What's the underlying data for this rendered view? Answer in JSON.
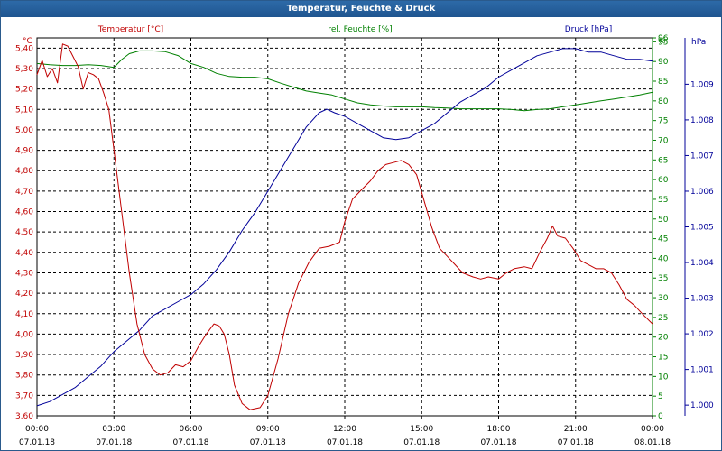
{
  "window": {
    "title": "Temperatur, Feuchte & Druck"
  },
  "colors": {
    "temperature": "#c00000",
    "humidity": "#008000",
    "pressure": "#000099",
    "grid": "#000000",
    "titlebar": "#1f5590"
  },
  "chart_data": {
    "type": "line",
    "grid": true,
    "series": [
      {
        "name": "Temperatur [°C]",
        "unit_label": "°C",
        "axis": "left",
        "ylim": [
          3.6,
          5.45
        ],
        "points": [
          [
            0,
            5.27
          ],
          [
            0.2,
            5.34
          ],
          [
            0.4,
            5.26
          ],
          [
            0.6,
            5.3
          ],
          [
            0.8,
            5.23
          ],
          [
            1.0,
            5.42
          ],
          [
            1.2,
            5.41
          ],
          [
            1.4,
            5.36
          ],
          [
            1.6,
            5.31
          ],
          [
            1.8,
            5.2
          ],
          [
            2.0,
            5.28
          ],
          [
            2.2,
            5.27
          ],
          [
            2.4,
            5.25
          ],
          [
            2.6,
            5.18
          ],
          [
            2.8,
            5.1
          ],
          [
            3.0,
            4.9
          ],
          [
            3.3,
            4.6
          ],
          [
            3.6,
            4.3
          ],
          [
            3.9,
            4.05
          ],
          [
            4.2,
            3.9
          ],
          [
            4.5,
            3.83
          ],
          [
            4.8,
            3.8
          ],
          [
            5.1,
            3.81
          ],
          [
            5.4,
            3.85
          ],
          [
            5.7,
            3.84
          ],
          [
            6.0,
            3.87
          ],
          [
            6.3,
            3.94
          ],
          [
            6.6,
            4.0
          ],
          [
            6.9,
            4.05
          ],
          [
            7.1,
            4.04
          ],
          [
            7.3,
            4.0
          ],
          [
            7.5,
            3.9
          ],
          [
            7.7,
            3.75
          ],
          [
            8.0,
            3.66
          ],
          [
            8.3,
            3.63
          ],
          [
            8.7,
            3.64
          ],
          [
            9.0,
            3.7
          ],
          [
            9.4,
            3.88
          ],
          [
            9.8,
            4.1
          ],
          [
            10.2,
            4.25
          ],
          [
            10.6,
            4.35
          ],
          [
            11.0,
            4.42
          ],
          [
            11.4,
            4.43
          ],
          [
            11.8,
            4.45
          ],
          [
            12.0,
            4.55
          ],
          [
            12.3,
            4.66
          ],
          [
            12.6,
            4.7
          ],
          [
            13.0,
            4.75
          ],
          [
            13.3,
            4.8
          ],
          [
            13.6,
            4.83
          ],
          [
            13.9,
            4.84
          ],
          [
            14.2,
            4.85
          ],
          [
            14.5,
            4.83
          ],
          [
            14.8,
            4.78
          ],
          [
            15.1,
            4.65
          ],
          [
            15.4,
            4.52
          ],
          [
            15.7,
            4.42
          ],
          [
            16.0,
            4.38
          ],
          [
            16.3,
            4.34
          ],
          [
            16.6,
            4.3
          ],
          [
            17.0,
            4.28
          ],
          [
            17.3,
            4.27
          ],
          [
            17.6,
            4.28
          ],
          [
            18.0,
            4.27
          ],
          [
            18.3,
            4.3
          ],
          [
            18.6,
            4.32
          ],
          [
            19.0,
            4.33
          ],
          [
            19.3,
            4.32
          ],
          [
            19.6,
            4.4
          ],
          [
            19.9,
            4.47
          ],
          [
            20.1,
            4.53
          ],
          [
            20.3,
            4.48
          ],
          [
            20.6,
            4.47
          ],
          [
            20.9,
            4.42
          ],
          [
            21.2,
            4.36
          ],
          [
            21.5,
            4.34
          ],
          [
            21.8,
            4.32
          ],
          [
            22.1,
            4.32
          ],
          [
            22.4,
            4.3
          ],
          [
            22.7,
            4.24
          ],
          [
            23.0,
            4.17
          ],
          [
            23.3,
            4.14
          ],
          [
            23.6,
            4.1
          ],
          [
            24.0,
            4.05
          ]
        ]
      },
      {
        "name": "rel. Feuchte [%]",
        "unit_label": "%",
        "axis": "right-1",
        "ylim": [
          0,
          96
        ],
        "points": [
          [
            0,
            89.5
          ],
          [
            0.5,
            89.2
          ],
          [
            1.0,
            89.0
          ],
          [
            1.5,
            89.0
          ],
          [
            2.0,
            89.2
          ],
          [
            2.5,
            89.0
          ],
          [
            3.0,
            88.5
          ],
          [
            3.3,
            90.5
          ],
          [
            3.6,
            92.0
          ],
          [
            4.0,
            92.7
          ],
          [
            4.5,
            92.7
          ],
          [
            5.0,
            92.5
          ],
          [
            5.5,
            91.5
          ],
          [
            6.0,
            89.5
          ],
          [
            6.5,
            88.5
          ],
          [
            7.0,
            87.0
          ],
          [
            7.5,
            86.2
          ],
          [
            8.0,
            86.0
          ],
          [
            8.5,
            86.0
          ],
          [
            9.0,
            85.6
          ],
          [
            9.5,
            84.5
          ],
          [
            10.0,
            83.5
          ],
          [
            10.5,
            82.5
          ],
          [
            11.0,
            82.0
          ],
          [
            11.5,
            81.5
          ],
          [
            12.0,
            80.5
          ],
          [
            12.5,
            79.5
          ],
          [
            13.0,
            79.0
          ],
          [
            13.5,
            78.7
          ],
          [
            14.0,
            78.5
          ],
          [
            14.5,
            78.5
          ],
          [
            15.0,
            78.5
          ],
          [
            15.5,
            78.3
          ],
          [
            16.0,
            78.2
          ],
          [
            16.5,
            78.0
          ],
          [
            17.0,
            78.0
          ],
          [
            17.5,
            78.0
          ],
          [
            18.0,
            78.0
          ],
          [
            18.5,
            77.8
          ],
          [
            19.0,
            77.5
          ],
          [
            19.5,
            77.8
          ],
          [
            20.0,
            78.0
          ],
          [
            20.5,
            78.5
          ],
          [
            21.0,
            79.0
          ],
          [
            21.5,
            79.5
          ],
          [
            22.0,
            80.0
          ],
          [
            22.5,
            80.5
          ],
          [
            23.0,
            81.0
          ],
          [
            23.5,
            81.5
          ],
          [
            24.0,
            82.2
          ]
        ]
      },
      {
        "name": "Druck [hPa]",
        "unit_label": "hPa",
        "axis": "right-2",
        "ylim": [
          0.9997,
          1.0103
        ],
        "points": [
          [
            0,
            0.99998
          ],
          [
            0.5,
            1.0001
          ],
          [
            1.0,
            1.0003
          ],
          [
            1.5,
            1.0005
          ],
          [
            2.0,
            1.0008
          ],
          [
            2.5,
            1.0011
          ],
          [
            3.0,
            1.0015
          ],
          [
            3.5,
            1.0018
          ],
          [
            4.0,
            1.0021
          ],
          [
            4.5,
            1.0025
          ],
          [
            5.0,
            1.0027
          ],
          [
            5.5,
            1.0029
          ],
          [
            6.0,
            1.0031
          ],
          [
            6.5,
            1.0034
          ],
          [
            7.0,
            1.0038
          ],
          [
            7.5,
            1.0043
          ],
          [
            8.0,
            1.0049
          ],
          [
            8.5,
            1.0054
          ],
          [
            9.0,
            1.006
          ],
          [
            9.5,
            1.0066
          ],
          [
            10.0,
            1.0072
          ],
          [
            10.5,
            1.0078
          ],
          [
            11.0,
            1.0082
          ],
          [
            11.3,
            1.0083
          ],
          [
            11.6,
            1.0082
          ],
          [
            12.0,
            1.0081
          ],
          [
            12.5,
            1.0079
          ],
          [
            13.0,
            1.0077
          ],
          [
            13.5,
            1.0075
          ],
          [
            14.0,
            1.00745
          ],
          [
            14.5,
            1.0075
          ],
          [
            15.0,
            1.0077
          ],
          [
            15.5,
            1.0079
          ],
          [
            16.0,
            1.0082
          ],
          [
            16.5,
            1.0085
          ],
          [
            17.0,
            1.0087
          ],
          [
            17.5,
            1.0089
          ],
          [
            18.0,
            1.0092
          ],
          [
            18.5,
            1.0094
          ],
          [
            19.0,
            1.0096
          ],
          [
            19.5,
            1.0098
          ],
          [
            20.0,
            1.0099
          ],
          [
            20.5,
            1.01
          ],
          [
            21.0,
            1.01
          ],
          [
            21.5,
            1.0099
          ],
          [
            22.0,
            1.0099
          ],
          [
            22.5,
            1.0098
          ],
          [
            23.0,
            1.0097
          ],
          [
            23.5,
            1.0097
          ],
          [
            24.0,
            1.00965
          ]
        ]
      }
    ],
    "x_range_hours": [
      0,
      24
    ],
    "x_ticks": [
      {
        "time": "00:00",
        "date": "07.01.18"
      },
      {
        "time": "03:00",
        "date": "07.01.18"
      },
      {
        "time": "06:00",
        "date": "07.01.18"
      },
      {
        "time": "09:00",
        "date": "07.01.18"
      },
      {
        "time": "12:00",
        "date": "07.01.18"
      },
      {
        "time": "15:00",
        "date": "07.01.18"
      },
      {
        "time": "18:00",
        "date": "07.01.18"
      },
      {
        "time": "21:00",
        "date": "07.01.18"
      },
      {
        "time": "00:00",
        "date": "08.01.18"
      }
    ],
    "y_ticks_temperature": [
      "5,40",
      "5,30",
      "5,20",
      "5,10",
      "5,00",
      "4,90",
      "4,80",
      "4,70",
      "4,60",
      "4,50",
      "4,40",
      "4,30",
      "4,20",
      "4,10",
      "4,00",
      "3,90",
      "3,80",
      "3,70",
      "3,60"
    ],
    "y_ticks_humidity": [
      "96",
      "95",
      "90",
      "85",
      "80",
      "75",
      "70",
      "65",
      "60",
      "55",
      "50",
      "45",
      "40",
      "35",
      "30",
      "25",
      "20",
      "15",
      "10",
      "5",
      "0"
    ],
    "y_ticks_pressure": [
      "1.009",
      "1.008",
      "1.007",
      "1.006",
      "1.005",
      "1.004",
      "1.003",
      "1.002",
      "1.001",
      "1.000"
    ]
  }
}
